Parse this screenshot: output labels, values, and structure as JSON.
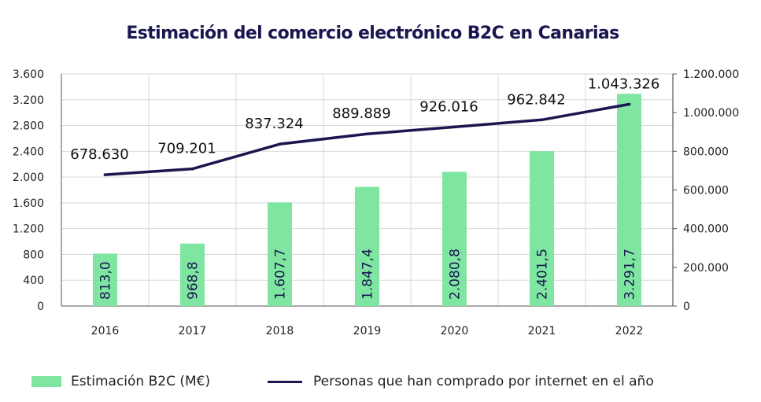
{
  "chart_data": {
    "type": "bar",
    "title": "Estimación del comercio electrónico B2C en Canarias",
    "categories": [
      "2016",
      "2017",
      "2018",
      "2019",
      "2020",
      "2021",
      "2022"
    ],
    "series": [
      {
        "name": "Estimación B2C (M€)",
        "type": "bar",
        "axis": "left",
        "values": [
          813.0,
          968.8,
          1607.7,
          1847.4,
          2080.8,
          2401.5,
          3291.7
        ],
        "labels": [
          "813,0",
          "968,8",
          "1.607,7",
          "1.847,4",
          "2.080,8",
          "2.401,5",
          "3.291,7"
        ],
        "color": "#7fe6a1"
      },
      {
        "name": "Personas que han comprado por internet en el año",
        "type": "line",
        "axis": "right",
        "values": [
          678630,
          709201,
          837324,
          889889,
          926016,
          962842,
          1043326
        ],
        "labels": [
          "678.630",
          "709.201",
          "837.324",
          "889.889",
          "926.016",
          "962.842",
          "1.043.326"
        ],
        "color": "#1a1750"
      }
    ],
    "left_axis": {
      "range": [
        0,
        3600
      ],
      "ticks": [
        0,
        400,
        800,
        1200,
        1600,
        2000,
        2400,
        2800,
        3200,
        3600
      ],
      "tick_labels": [
        "0",
        "400",
        "800",
        "1.200",
        "1.600",
        "2.000",
        "2.400",
        "2.800",
        "3.200",
        "3.600"
      ]
    },
    "right_axis": {
      "range": [
        0,
        1200000
      ],
      "ticks": [
        0,
        200000,
        400000,
        600000,
        800000,
        1000000,
        1200000
      ],
      "tick_labels": [
        "0",
        "200.000",
        "400.000",
        "600.000",
        "800.000",
        "1.000.000",
        "1.200.000"
      ]
    },
    "grid": true,
    "legend": "bottom"
  }
}
